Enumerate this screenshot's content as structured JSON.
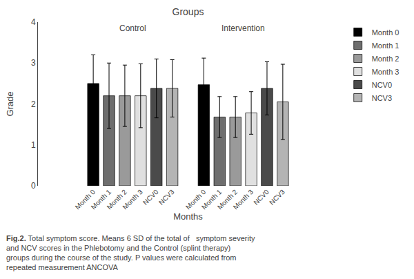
{
  "chart_data": {
    "type": "bar",
    "title": "Groups",
    "xlabel": "Months",
    "ylabel": "Grade",
    "categories": [
      "Control",
      "Intervention"
    ],
    "series": [
      {
        "name": "Month 0",
        "color": "#000000",
        "values": [
          2.5,
          2.47
        ],
        "errors": [
          0.7,
          0.65
        ]
      },
      {
        "name": "Month 1",
        "color": "#6e6e6e",
        "values": [
          2.2,
          1.68
        ],
        "errors": [
          0.8,
          0.5
        ]
      },
      {
        "name": "Month 2",
        "color": "#9a9a9a",
        "values": [
          2.2,
          1.68
        ],
        "errors": [
          0.75,
          0.5
        ]
      },
      {
        "name": "Month 3",
        "color": "#e0e0e0",
        "values": [
          2.2,
          1.78
        ],
        "errors": [
          0.78,
          0.52
        ]
      },
      {
        "name": "NCV0",
        "color": "#4a4a4a",
        "values": [
          2.38,
          2.38
        ],
        "errors": [
          0.72,
          0.65
        ]
      },
      {
        "name": "NCV3",
        "color": "#b4b4b4",
        "values": [
          2.38,
          2.05
        ],
        "errors": [
          0.7,
          0.92
        ]
      }
    ],
    "ylim": [
      0,
      4
    ],
    "yticks": [
      0,
      1,
      2,
      3,
      4
    ],
    "grid": false,
    "legend": "right",
    "caption": [
      "Fig.2.",
      " Total symptom score. Means 6 SD of the total of   symptom severity",
      "and NCV scores in the Phlebotomy and the Control (splint therapy)",
      "groups during the course of the study. P values were calculated from",
      "repeated measurement ANCOVA"
    ]
  }
}
